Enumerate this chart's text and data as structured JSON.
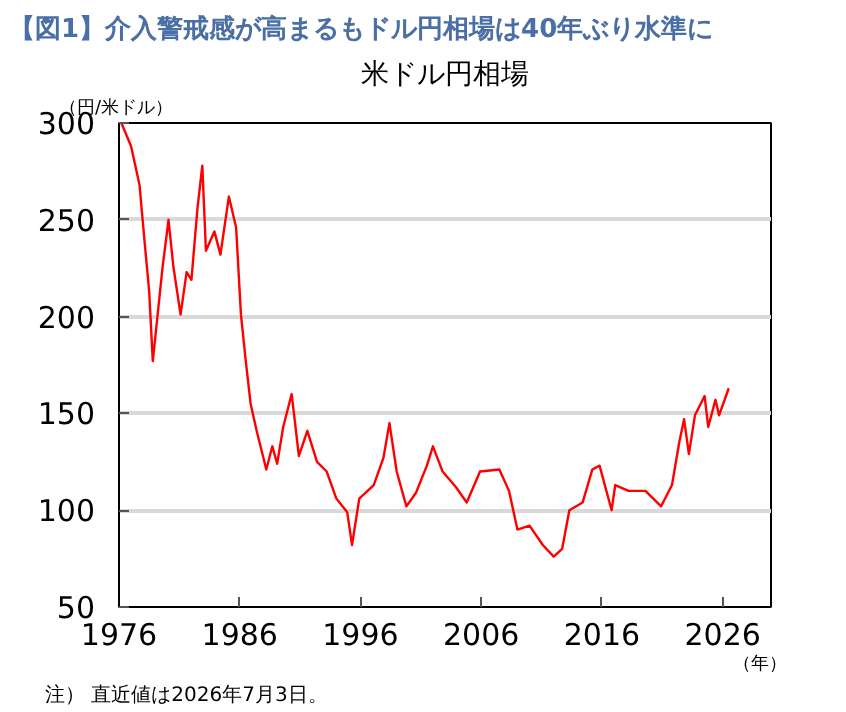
{
  "chart_data": {
    "type": "line",
    "title": "【図1】介入警戒感が高まるもドル円相場は40年ぶり水準に",
    "subtitle": "米ドル円相場",
    "ylabel": "（円/米ドル）",
    "xlabel": "（年）",
    "annotations": [
      "注） 直近値は2026年7月3日。"
    ],
    "x": [
      1976.2,
      1977.0,
      1977.7,
      1978.1,
      1978.5,
      1978.8,
      1979.2,
      1979.6,
      1980.1,
      1980.5,
      1981.1,
      1981.6,
      1982.0,
      1982.5,
      1982.9,
      1983.2,
      1983.9,
      1984.4,
      1985.1,
      1985.7,
      1986.1,
      1986.5,
      1986.9,
      1987.4,
      1988.2,
      1988.7,
      1989.1,
      1989.6,
      1990.3,
      1990.9,
      1991.6,
      1992.4,
      1993.2,
      1994.0,
      1994.9,
      1995.3,
      1995.9,
      1997.1,
      1997.9,
      1998.4,
      1999.0,
      1999.8,
      2000.6,
      2001.5,
      2002.0,
      2002.8,
      2003.9,
      2004.8,
      2005.9,
      2007.5,
      2008.3,
      2009.0,
      2010.0,
      2011.1,
      2012.0,
      2012.7,
      2013.3,
      2014.4,
      2015.2,
      2015.8,
      2016.8,
      2017.1,
      2018.2,
      2019.6,
      2020.9,
      2021.8,
      2022.4,
      2022.8,
      2023.2,
      2023.7,
      2024.5,
      2024.8,
      2025.4,
      2025.7,
      2026.5
    ],
    "series": [
      {
        "color": "#ff0000",
        "values": [
          300,
          288,
          268,
          240,
          213,
          177,
          201,
          225,
          250,
          226,
          201,
          223,
          219,
          256,
          278,
          234,
          244,
          232,
          262,
          246,
          201,
          177,
          155,
          141,
          121,
          133,
          124,
          143,
          160,
          128,
          141,
          125,
          120,
          106,
          99,
          82,
          106,
          113,
          127,
          145,
          120,
          102,
          109,
          123,
          133,
          120,
          112,
          104,
          120,
          121,
          110,
          90,
          92,
          82,
          76,
          80,
          100,
          104,
          121,
          123,
          100,
          113,
          110,
          110,
          102,
          113,
          135,
          147,
          129,
          149,
          159,
          143,
          157,
          149,
          163
        ]
      }
    ],
    "xlim": [
      1976,
      2030
    ],
    "xticks": [
      1976,
      1986,
      1996,
      2006,
      2016,
      2026
    ],
    "ylim": [
      50,
      300
    ],
    "yticks": [
      50,
      100,
      150,
      200,
      250,
      300
    ],
    "grid": "y",
    "marker": "none",
    "line_style": "solid"
  }
}
